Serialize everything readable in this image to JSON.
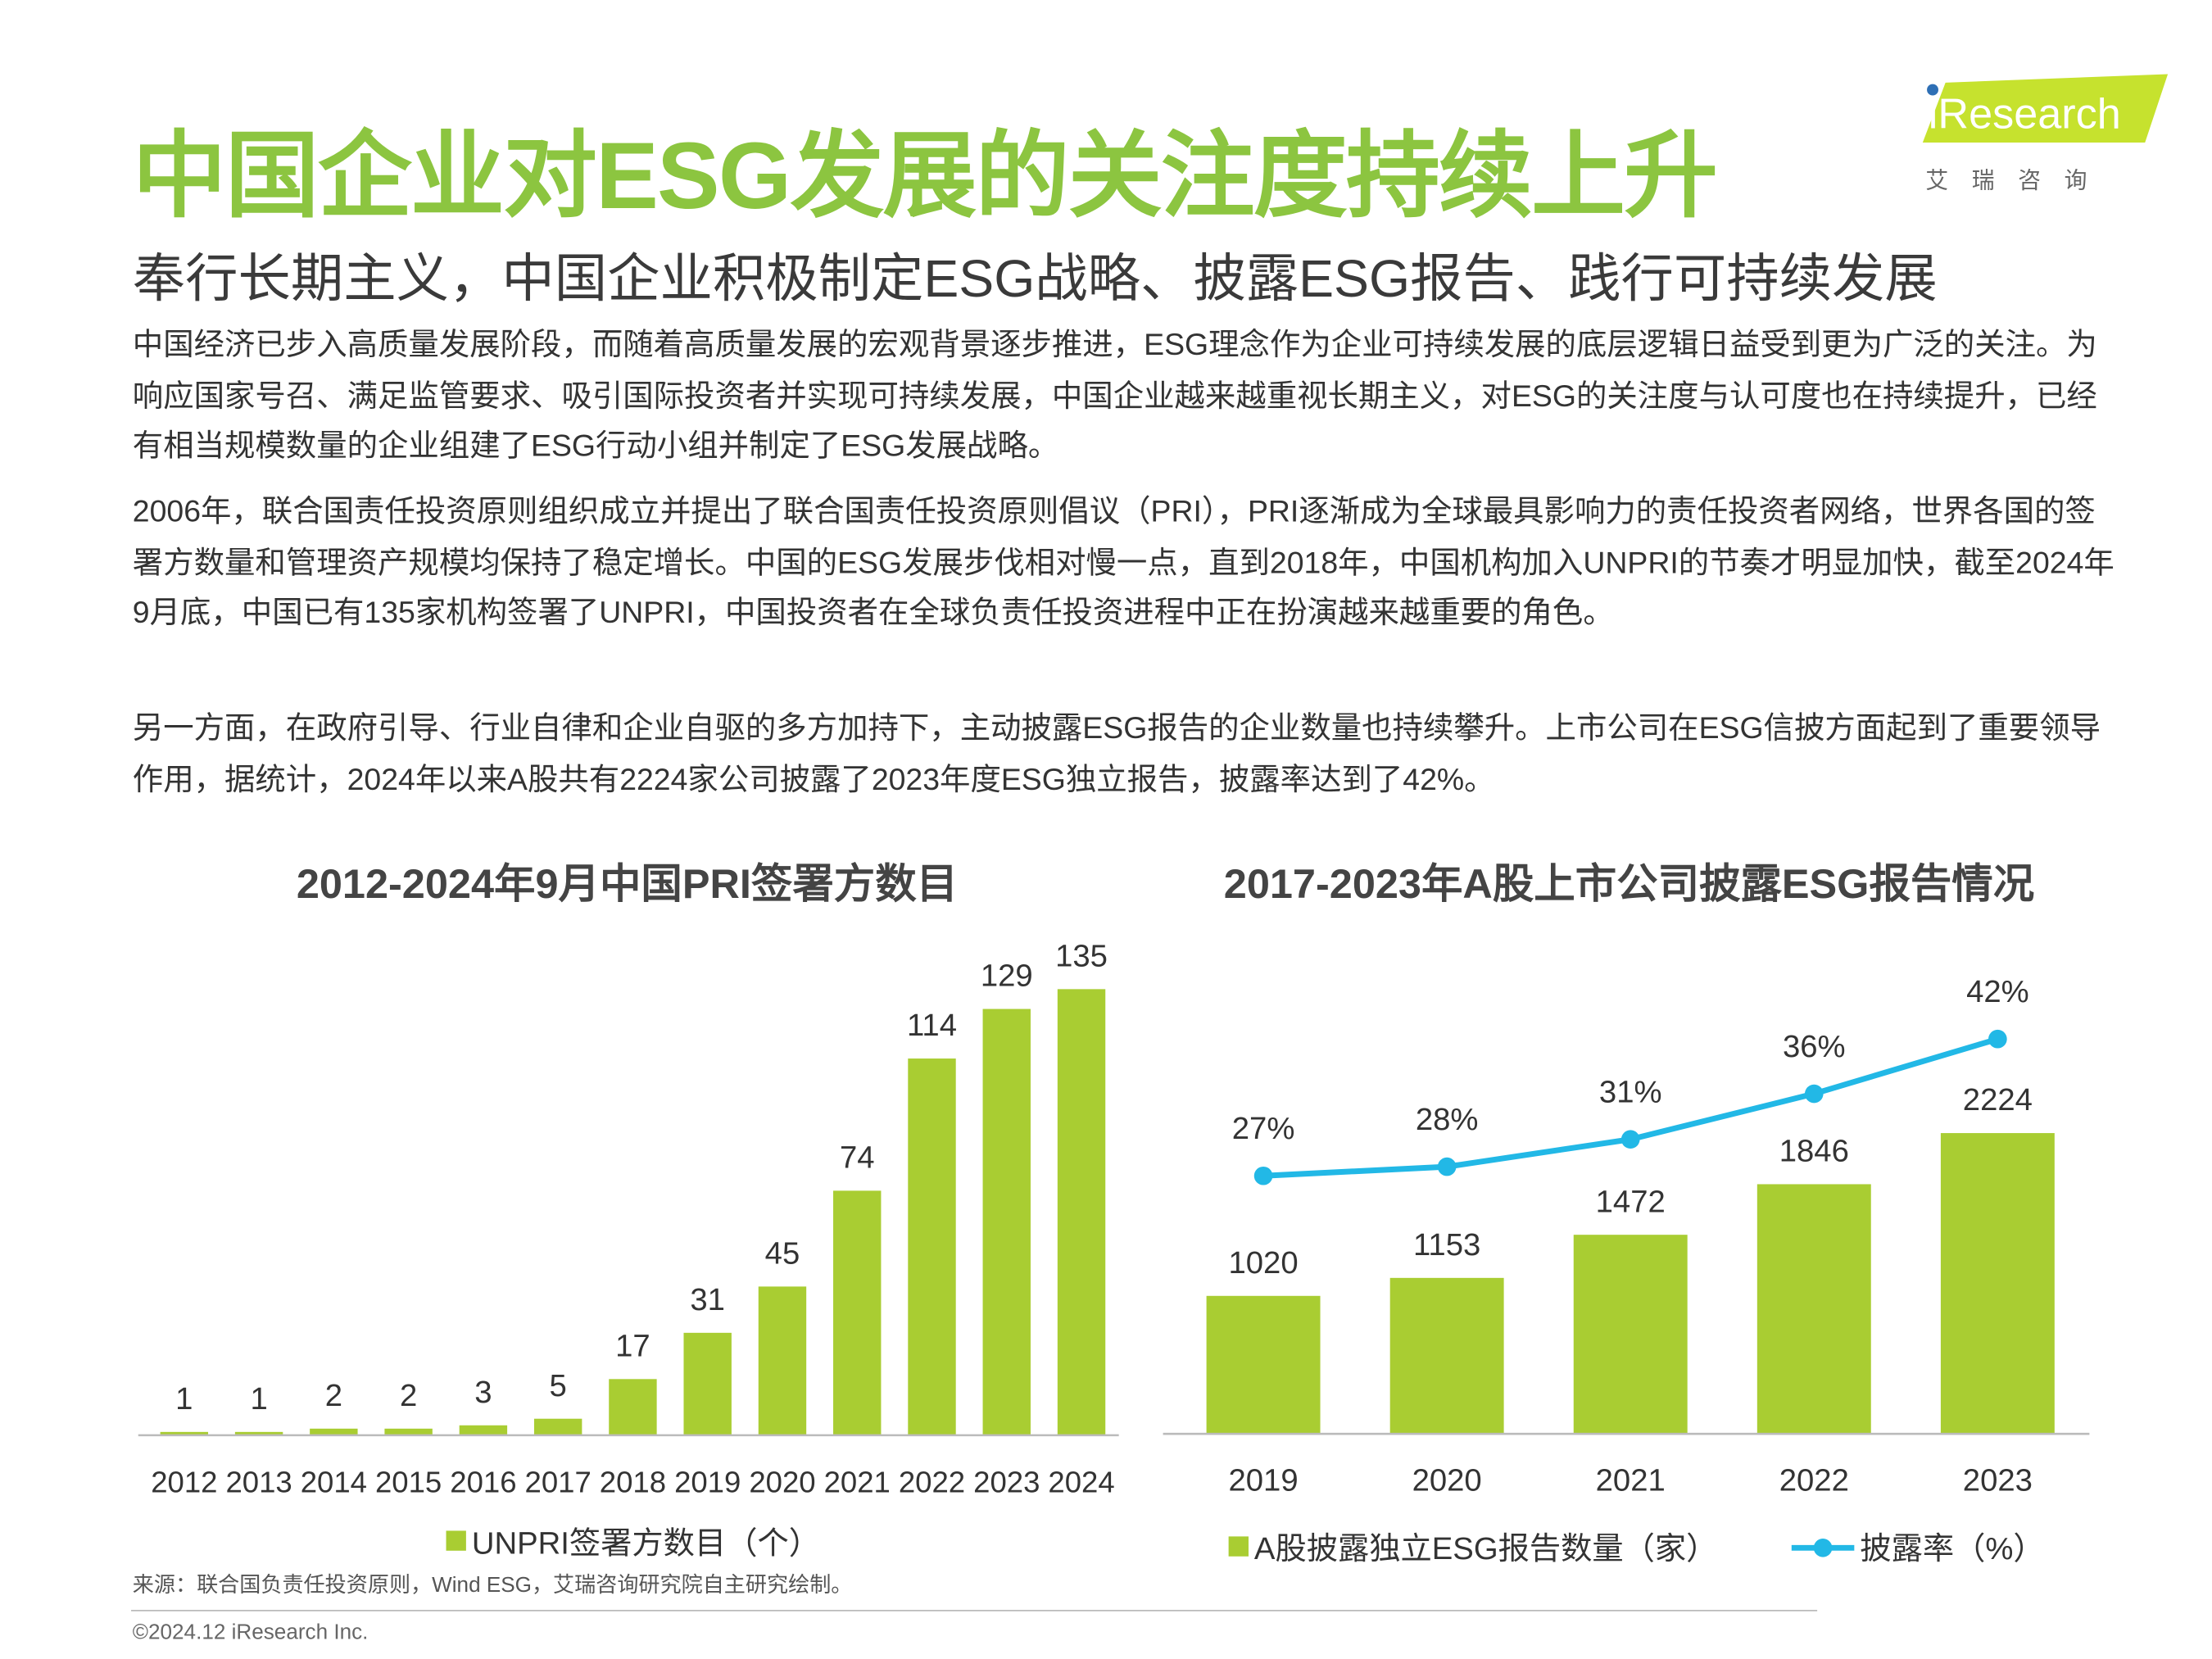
{
  "logo": {
    "brand": "iResearch",
    "chinese": "艾 瑞 咨 询"
  },
  "header": {
    "title": "中国企业对ESG发展的关注度持续上升",
    "subtitle": "奉行长期主义，中国企业积极制定ESG战略、披露ESG报告、践行可持续发展"
  },
  "paragraphs": [
    "中国经济已步入高质量发展阶段，而随着高质量发展的宏观背景逐步推进，ESG理念作为企业可持续发展的底层逻辑日益受到更为广泛的关注。为响应国家号召、满足监管要求、吸引国际投资者并实现可持续发展，中国企业越来越重视长期主义，对ESG的关注度与认可度也在持续提升，已经有相当规模数量的企业组建了ESG行动小组并制定了ESG发展战略。",
    "2006年，联合国责任投资原则组织成立并提出了联合国责任投资原则倡议（PRI），PRI逐渐成为全球最具影响力的责任投资者网络，世界各国的签署方数量和管理资产规模均保持了稳定增长。中国的ESG发展步伐相对慢一点，直到2018年，中国机构加入UNPRI的节奏才明显加快，截至2024年9月底，中国已有135家机构签署了UNPRI，中国投资者在全球负责任投资进程中正在扮演越来越重要的角色。",
    "另一方面，在政府引导、行业自律和企业自驱的多方加持下，主动披露ESG报告的企业数量也持续攀升。上市公司在ESG信披方面起到了重要领导作用，据统计，2024年以来A股共有2224家公司披露了2023年度ESG独立报告，披露率达到了42%。"
  ],
  "chart_data": [
    {
      "type": "bar",
      "title": "2012-2024年9月中国PRI签署方数目",
      "categories": [
        "2012",
        "2013",
        "2014",
        "2015",
        "2016",
        "2017",
        "2018",
        "2019",
        "2020",
        "2021",
        "2022",
        "2023",
        "2024"
      ],
      "series": [
        {
          "name": "UNPRI签署方数目（个）",
          "color": "#a9cd32",
          "values": [
            1,
            1,
            2,
            2,
            3,
            5,
            17,
            31,
            45,
            74,
            114,
            129,
            135
          ]
        }
      ]
    },
    {
      "type": "combo",
      "title": "2017-2023年A股上市公司披露ESG报告情况",
      "categories": [
        "2019",
        "2020",
        "2021",
        "2022",
        "2023"
      ],
      "series": [
        {
          "name": "A股披露独立ESG报告数量（家）",
          "type": "bar",
          "color": "#a9cd32",
          "values": [
            1020,
            1153,
            1472,
            1846,
            2224
          ]
        },
        {
          "name": "披露率（%）",
          "type": "line",
          "axis": "y2",
          "color": "#22b8e6",
          "values": [
            27,
            28,
            31,
            36,
            42
          ],
          "value_labels": [
            "27%",
            "28%",
            "31%",
            "36%",
            "42%"
          ]
        }
      ]
    }
  ],
  "source": "来源：联合国负责任投资原则，Wind ESG，艾瑞咨询研究院自主研究绘制。",
  "copyright": "©2024.12 iResearch Inc."
}
